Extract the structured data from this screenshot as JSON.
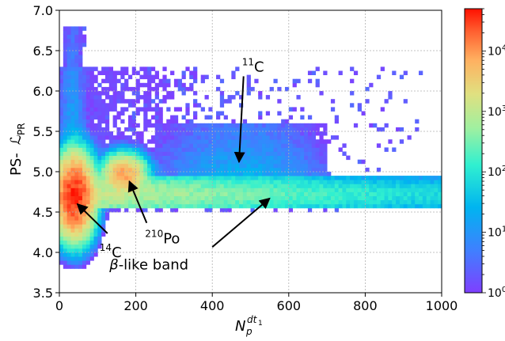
{
  "chart_data": {
    "type": "heatmap",
    "title": "",
    "xlabel": {
      "base": "N",
      "sub": "p",
      "sup": "dt",
      "supsub": "1"
    },
    "ylabel": {
      "base": "PS-",
      "script": "ℒ",
      "sub": "PR"
    },
    "xlim": [
      0,
      1000
    ],
    "ylim": [
      3.5,
      7.0
    ],
    "x_ticks": [
      "0",
      "200",
      "400",
      "600",
      "800",
      "1000"
    ],
    "y_ticks": [
      "3.5",
      "4.0",
      "4.5",
      "5.0",
      "5.5",
      "6.0",
      "6.5",
      "7.0"
    ],
    "grid": true,
    "colorbar": {
      "scale": "log",
      "range": [
        1,
        50000
      ],
      "ticks": [
        {
          "value": 1,
          "base": "10",
          "exp": "0"
        },
        {
          "value": 10,
          "base": "10",
          "exp": "1"
        },
        {
          "value": 100,
          "base": "10",
          "exp": "2"
        },
        {
          "value": 1000,
          "base": "10",
          "exp": "3"
        },
        {
          "value": 10000,
          "base": "10",
          "exp": "4"
        }
      ]
    },
    "features": [
      {
        "name": "14C",
        "x": 40,
        "y": 4.7,
        "peak_count": 40000
      },
      {
        "name": "210Po",
        "x": 170,
        "y": 4.97,
        "peak_count": 8000
      },
      {
        "name": "beta-like band",
        "x_range": [
          0,
          1000
        ],
        "y": 4.72,
        "count_at_x300": 600
      },
      {
        "name": "11C",
        "x_range": [
          250,
          700
        ],
        "y_range": [
          4.85,
          5.6
        ],
        "count": 30
      }
    ],
    "annotations": [
      {
        "id": "c14",
        "label": {
          "sup": "14",
          "base": "C"
        },
        "text_at": [
          130,
          3.98
        ],
        "arrow_to": [
          47,
          4.6
        ]
      },
      {
        "id": "po210",
        "label": {
          "sup": "210",
          "base": "Po"
        },
        "text_at": [
          245,
          4.17
        ],
        "arrow_to": [
          183,
          4.88
        ]
      },
      {
        "id": "beta",
        "label": {
          "greek": "β",
          "base": "-like band"
        },
        "text_at": [
          400,
          3.85
        ],
        "arrow_to": [
          550,
          4.67
        ]
      },
      {
        "id": "c11",
        "label": {
          "sup": "11",
          "base": "C"
        },
        "text_at": [
          490,
          6.3
        ],
        "arrow_to": [
          470,
          5.12
        ]
      }
    ]
  }
}
